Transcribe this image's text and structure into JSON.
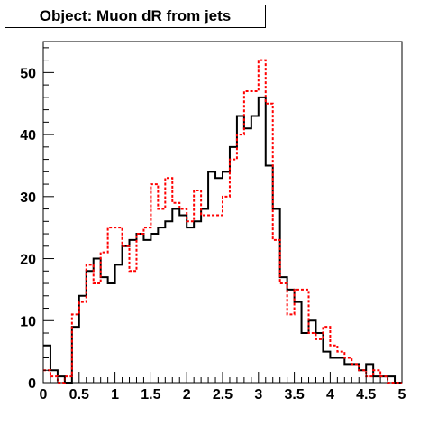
{
  "chart_data": {
    "type": "histogram",
    "title": "Object: Muon dR from jets",
    "xlabel": "",
    "ylabel": "",
    "xlim": [
      0,
      5
    ],
    "ylim": [
      0,
      55
    ],
    "xticks": [
      "0",
      "0.5",
      "1",
      "1.5",
      "2",
      "2.5",
      "3",
      "3.5",
      "4",
      "4.5",
      "5"
    ],
    "yticks": [
      "0",
      "10",
      "20",
      "30",
      "40",
      "50"
    ],
    "grid": false,
    "legend": "none",
    "bin_width": 0.1,
    "bin_edges_start": 0,
    "series": [
      {
        "style": "solid",
        "color": "#000000",
        "values": [
          6,
          2,
          1,
          0,
          9,
          14,
          18,
          20,
          17,
          16,
          19,
          22,
          23,
          24,
          23,
          24,
          25,
          26,
          28,
          27,
          25,
          26,
          28,
          34,
          33,
          34,
          38,
          43,
          41,
          43,
          46,
          35,
          28,
          17,
          15,
          13,
          8,
          10,
          8,
          5,
          4,
          4,
          3,
          3,
          2,
          3,
          1,
          1,
          1,
          0
        ]
      },
      {
        "style": "dashed",
        "color": "#ff0000",
        "values": [
          2,
          1,
          0,
          1,
          11,
          13,
          19,
          16,
          21,
          25,
          25,
          22,
          18,
          24,
          25,
          32,
          28,
          33,
          29,
          28,
          26,
          31,
          27,
          27,
          27,
          30,
          36,
          40,
          47,
          47,
          52,
          45,
          23,
          16,
          11,
          15,
          15,
          8,
          7,
          9,
          6,
          5,
          4,
          3,
          2,
          1,
          2,
          1,
          0,
          0
        ]
      }
    ]
  }
}
